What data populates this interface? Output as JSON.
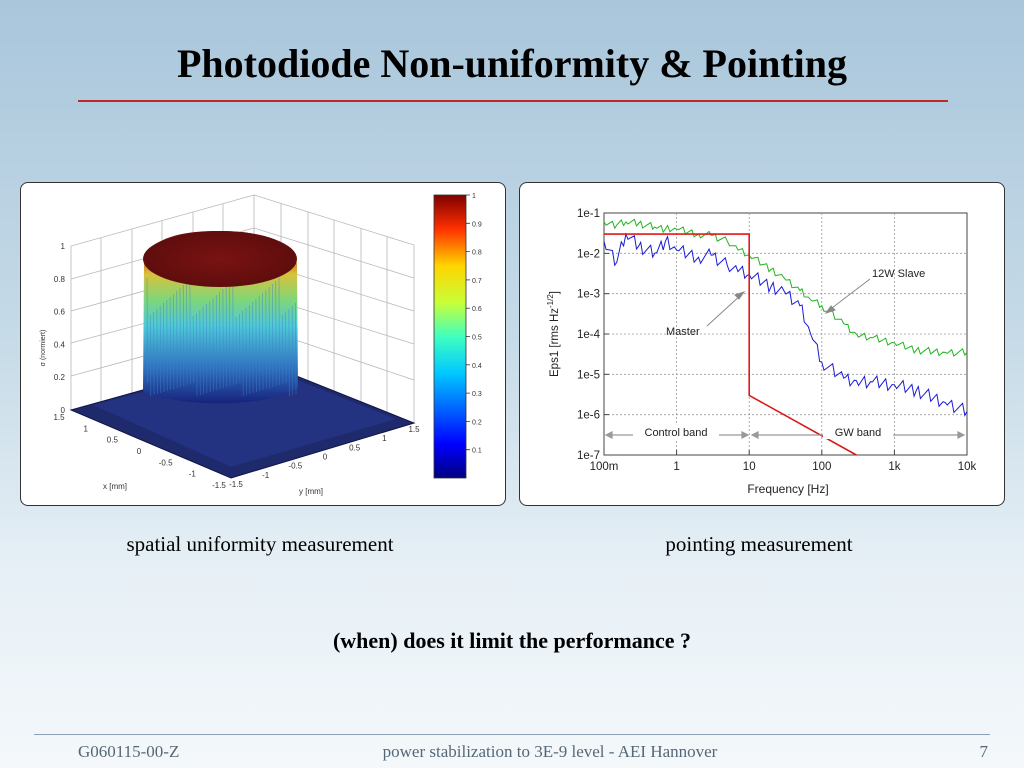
{
  "slide": {
    "title": "Photodiode Non-uniformity & Pointing",
    "caption_left": "spatial uniformity measurement",
    "caption_right": "pointing measurement",
    "question": "(when) does it limit the performance ?",
    "footer_left": "G060115-00-Z",
    "footer_center": "power stabilization to 3E-9 level  - AEI Hannover",
    "page_number": "7"
  },
  "chart_data": [
    {
      "type": "surface",
      "zlabel": "σ (normiert)",
      "xlabel": "x [mm]",
      "ylabel": "y [mm]",
      "x_ticks": [
        "1.5",
        "1",
        "0.5",
        "0",
        "-0.5",
        "-1",
        "-1.5"
      ],
      "y_ticks": [
        "-1.5",
        "-1",
        "-0.5",
        "0",
        "0.5",
        "1",
        "1.5"
      ],
      "z_ticks": [
        "0",
        "0.2",
        "0.4",
        "0.6",
        "0.8",
        "1"
      ],
      "colorbar_ticks": [
        "0.1",
        "0.2",
        "0.3",
        "0.4",
        "0.5",
        "0.6",
        "0.7",
        "0.8",
        "0.9",
        "1"
      ],
      "zlim": [
        0,
        1
      ]
    },
    {
      "type": "line",
      "xlabel": "Frequency [Hz]",
      "ylabel": "Eps1 [rms Hz",
      "ylabel_exp": "-1/2",
      "ylabel_end": "]",
      "x_ticks": [
        "100m",
        "1",
        "10",
        "100",
        "1k",
        "10k"
      ],
      "y_ticks": [
        "1e-1",
        "1e-2",
        "1e-3",
        "1e-4",
        "1e-5",
        "1e-6",
        "1e-7"
      ],
      "x_scale": "log",
      "y_scale": "log",
      "xlim": [
        0.1,
        10000
      ],
      "ylim": [
        1e-07,
        0.1
      ],
      "grid": true,
      "annotations": {
        "slave": "12W Slave",
        "master": "Master",
        "control_band": "Control band",
        "gw_band": "GW band"
      },
      "series": [
        {
          "color": "#1fb51f",
          "x": [
            0.1,
            0.15,
            0.2,
            0.3,
            0.5,
            0.7,
            1,
            2,
            3,
            5,
            7,
            10,
            20,
            30,
            50,
            70,
            100,
            200,
            300,
            500,
            1000,
            2000,
            5000,
            10000
          ],
          "y": [
            0.06,
            0.05,
            0.06,
            0.055,
            0.045,
            0.04,
            0.04,
            0.03,
            0.028,
            0.02,
            0.012,
            0.009,
            0.004,
            0.0025,
            0.0012,
            0.0007,
            0.0005,
            0.00018,
            0.0001,
            8e-05,
            6e-05,
            4e-05,
            3.5e-05,
            3.5e-05
          ]
        },
        {
          "color": "#1a1ad6",
          "x": [
            0.1,
            0.15,
            0.2,
            0.3,
            0.5,
            0.7,
            1,
            2,
            3,
            5,
            7,
            10,
            20,
            30,
            50,
            70,
            100,
            200,
            300,
            500,
            1000,
            2000,
            5000,
            10000
          ],
          "y": [
            0.02,
            0.006,
            0.03,
            0.015,
            0.01,
            0.02,
            0.012,
            0.008,
            0.009,
            0.005,
            0.0035,
            0.003,
            0.0015,
            0.0012,
            0.0005,
            0.0001,
            2e-05,
            8e-06,
            7e-06,
            6.5e-06,
            5.5e-06,
            4e-06,
            2e-06,
            1.2e-06
          ]
        },
        {
          "color": "#e01818",
          "x": [
            0.1,
            10,
            10,
            300
          ],
          "y": [
            0.03,
            0.03,
            3e-06,
            1e-07
          ]
        }
      ]
    }
  ]
}
